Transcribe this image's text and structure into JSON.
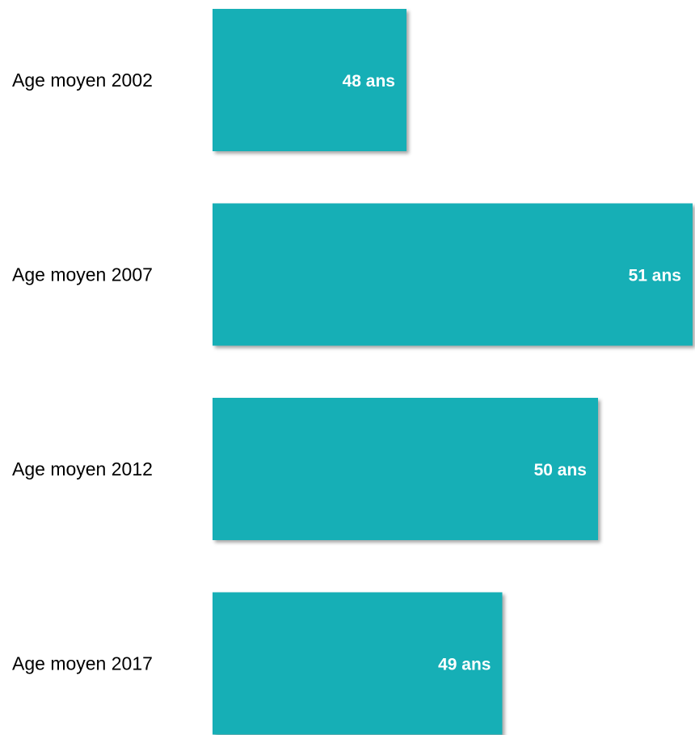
{
  "chart_data": {
    "type": "bar",
    "orientation": "horizontal",
    "categories": [
      "Age moyen 2002",
      "Age moyen 2007",
      "Age moyen 2012",
      "Age moyen 2017"
    ],
    "values": [
      48,
      51,
      50,
      49
    ],
    "value_labels": [
      "48 ans",
      "51 ans",
      "50 ans",
      "49 ans"
    ],
    "unit": "ans",
    "title": "",
    "xlabel": "",
    "ylabel": "",
    "grid": false,
    "bar_color": "#14AFB6",
    "label_color": "#FFFFFF"
  }
}
